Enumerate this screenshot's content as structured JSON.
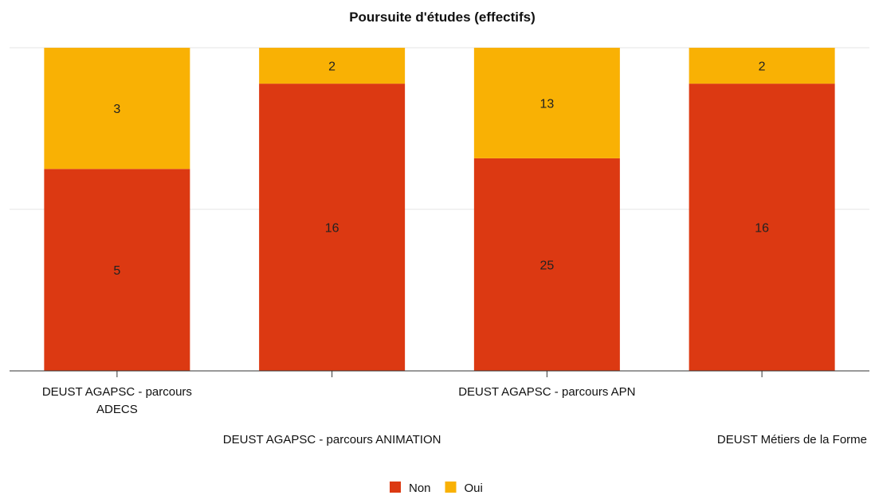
{
  "chart_data": {
    "type": "bar",
    "stacked": true,
    "title": "Poursuite d'études (effectifs)",
    "categories": [
      "DEUST AGAPSC - parcours ADECS",
      "DEUST AGAPSC - parcours ANIMATION",
      "DEUST AGAPSC - parcours APN",
      "DEUST Métiers de la Forme"
    ],
    "series": [
      {
        "name": "Non",
        "values": [
          5,
          16,
          25,
          16
        ],
        "color": "#dc3912"
      },
      {
        "name": "Oui",
        "values": [
          3,
          2,
          13,
          2
        ],
        "color": "#f9b104"
      }
    ],
    "normalized": true,
    "ylim": [
      0,
      1
    ],
    "grid": true,
    "legend_position": "bottom"
  }
}
